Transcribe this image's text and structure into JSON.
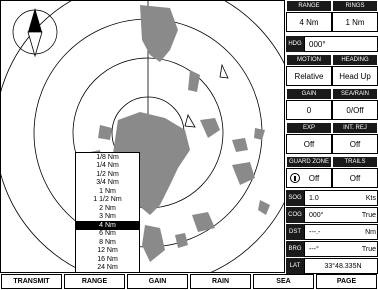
{
  "panel": {
    "pairs": [
      [
        {
          "label": "RANGE",
          "value": "4 Nm"
        },
        {
          "label": "RINGS",
          "value": "1 Nm"
        }
      ],
      [
        {
          "label": "MOTION",
          "value": "Relative"
        },
        {
          "label": "HEADING",
          "value": "Head Up"
        }
      ],
      [
        {
          "label": "GAIN",
          "value": "0"
        },
        {
          "label": "SEA/RAIN",
          "value": "0/Off"
        }
      ],
      [
        {
          "label": "EXP",
          "value": "Off"
        },
        {
          "label": "INT. REJ",
          "value": "Off"
        }
      ],
      [
        {
          "label": "GUARD ZONE",
          "value": "Off"
        },
        {
          "label": "TRAILS",
          "value": "Off"
        }
      ]
    ],
    "heading": {
      "label": "HDG",
      "value": "000°"
    },
    "nav": [
      {
        "label": "SOG",
        "value": "1.0",
        "unit": "Kts"
      },
      {
        "label": "COG",
        "value": "000°",
        "unit": "True"
      },
      {
        "label": "DST",
        "value": "---.-",
        "unit": "Nm"
      },
      {
        "label": "BRG",
        "value": "---°",
        "unit": "True"
      },
      {
        "label": "LAT",
        "value": "33°48.335N"
      }
    ]
  },
  "range_menu": [
    "1/8 Nm",
    "1/4 Nm",
    "1/2 Nm",
    "3/4 Nm",
    "1 Nm",
    "1 1/2 Nm",
    "2 Nm",
    "3 Nm",
    "4 Nm",
    "6 Nm",
    "8 Nm",
    "12 Nm",
    "16 Nm",
    "24 Nm"
  ],
  "buttons": [
    "TRANSMIT",
    "RANGE",
    "GAIN",
    "RAIN",
    "SEA",
    "PAGE"
  ]
}
